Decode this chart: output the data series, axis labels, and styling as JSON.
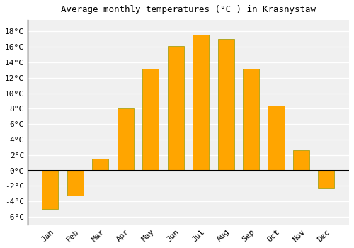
{
  "title": "Average monthly temperatures (°C ) in Krasnystaw",
  "months": [
    "Jan",
    "Feb",
    "Mar",
    "Apr",
    "May",
    "Jun",
    "Jul",
    "Aug",
    "Sep",
    "Oct",
    "Nov",
    "Dec"
  ],
  "values": [
    -5.0,
    -3.3,
    1.5,
    8.0,
    13.2,
    16.1,
    17.6,
    17.0,
    13.2,
    8.4,
    2.6,
    -2.3
  ],
  "bar_color": "#FFA500",
  "bar_edge_color": "#999900",
  "background_color": "#ffffff",
  "plot_bg_color": "#f0f0f0",
  "grid_color": "#ffffff",
  "zero_line_color": "#000000",
  "left_spine_color": "#000000",
  "ylim": [
    -7,
    19.5
  ],
  "yticks": [
    -6,
    -4,
    -2,
    0,
    2,
    4,
    6,
    8,
    10,
    12,
    14,
    16,
    18
  ],
  "ytick_labels": [
    "-6°C",
    "-4°C",
    "-2°C",
    "0°C",
    "2°C",
    "4°C",
    "6°C",
    "8°C",
    "10°C",
    "12°C",
    "14°C",
    "16°C",
    "18°C"
  ],
  "title_fontsize": 9,
  "tick_fontsize": 8,
  "bar_width": 0.65
}
